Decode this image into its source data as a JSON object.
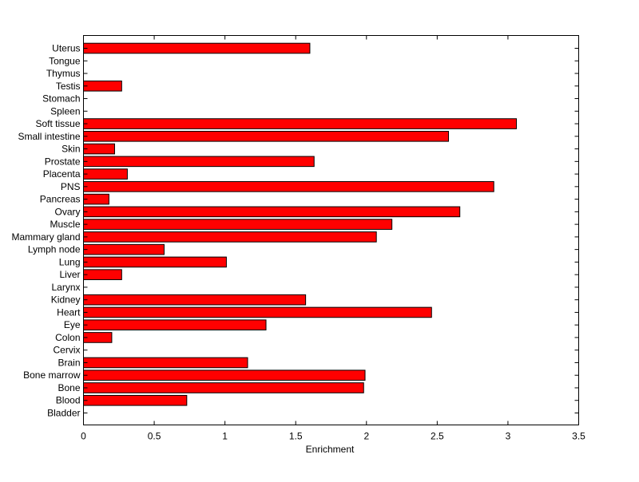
{
  "chart_data": {
    "type": "bar",
    "orientation": "horizontal",
    "title": "",
    "xlabel": "Enrichment",
    "ylabel": "",
    "xlim": [
      0,
      3.5
    ],
    "xticks": [
      0,
      0.5,
      1,
      1.5,
      2,
      2.5,
      3,
      3.5
    ],
    "xtick_labels": [
      "0",
      "0.5",
      "1",
      "1.5",
      "2",
      "2.5",
      "3",
      "3.5"
    ],
    "grid": false,
    "legend": "none",
    "bar_color": "#ff0000",
    "bar_edge_color": "#000000",
    "categories": [
      "Bladder",
      "Blood",
      "Bone",
      "Bone marrow",
      "Brain",
      "Cervix",
      "Colon",
      "Eye",
      "Heart",
      "Kidney",
      "Larynx",
      "Liver",
      "Lung",
      "Lymph node",
      "Mammary gland",
      "Muscle",
      "Ovary",
      "Pancreas",
      "PNS",
      "Placenta",
      "Prostate",
      "Skin",
      "Small intestine",
      "Soft tissue",
      "Spleen",
      "Stomach",
      "Testis",
      "Thymus",
      "Tongue",
      "Uterus"
    ],
    "values": [
      0,
      0.73,
      1.98,
      1.99,
      1.16,
      0,
      0.2,
      1.29,
      2.46,
      1.57,
      0,
      0.27,
      1.01,
      0.57,
      2.07,
      2.18,
      2.66,
      0.18,
      2.9,
      0.31,
      1.63,
      0.22,
      2.58,
      3.06,
      0,
      0,
      0.27,
      0,
      0,
      1.6
    ]
  }
}
